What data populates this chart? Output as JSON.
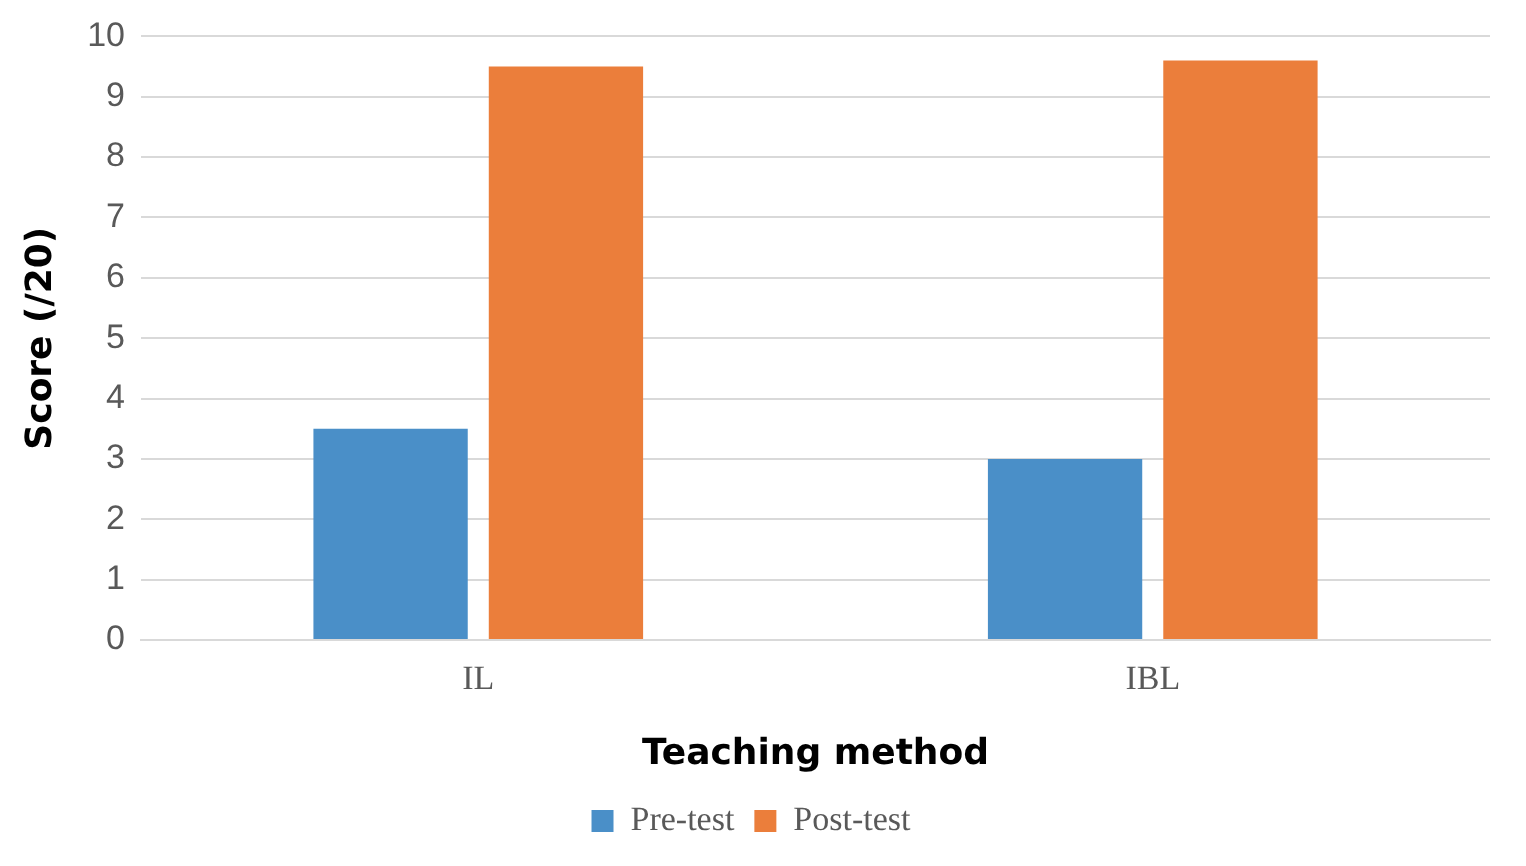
{
  "chart_data": {
    "type": "bar",
    "xlabel": "Teaching method",
    "ylabel": "Score (/20)",
    "categories": [
      "IL",
      "IBL"
    ],
    "series": [
      {
        "name": "Pre-test",
        "color": "#4a8fc8",
        "values": [
          3.5,
          3.0
        ]
      },
      {
        "name": "Post-test",
        "color": "#eb7e3b",
        "values": [
          9.5,
          9.6
        ]
      }
    ],
    "ylim": [
      0,
      10
    ],
    "yticks": [
      0,
      1,
      2,
      3,
      4,
      5,
      6,
      7,
      8,
      9,
      10
    ],
    "grid": "y",
    "legend": "bottom"
  }
}
